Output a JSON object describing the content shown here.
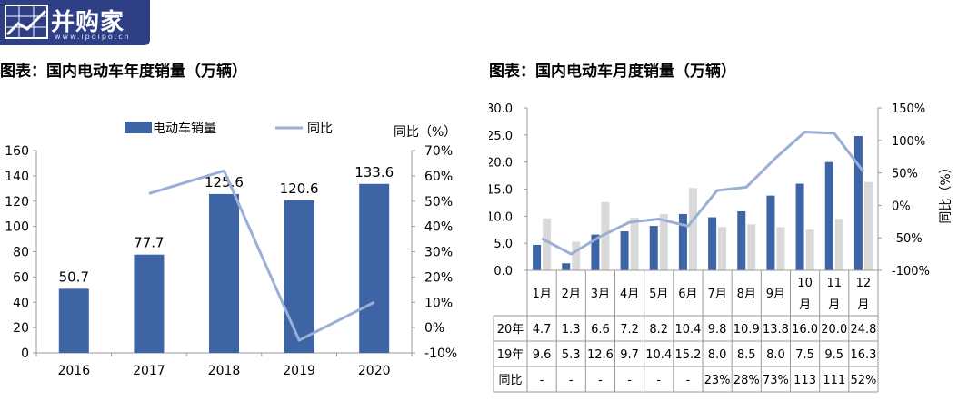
{
  "logo": {
    "brand": "并购家",
    "url": "www.ipoipo.cn"
  },
  "charts": {
    "annual": {
      "title": "图表：国内电动车年度销量（万辆）"
    },
    "monthly": {
      "title": "图表：国内电动车月度销量（万辆）"
    }
  },
  "chart_data": [
    {
      "type": "bar",
      "title": "图表：国内电动车年度销量（万辆）",
      "categories": [
        "2016",
        "2017",
        "2018",
        "2019",
        "2020"
      ],
      "series": [
        {
          "name": "电动车销量",
          "type": "bar",
          "axis": "left",
          "values": [
            50.7,
            77.7,
            125.6,
            120.6,
            133.6
          ],
          "labels": [
            "50.7",
            "77.7",
            "125.6",
            "120.6",
            "133.6"
          ]
        },
        {
          "name": "同比",
          "type": "line",
          "axis": "right",
          "values": [
            null,
            53,
            62,
            -5,
            10
          ]
        }
      ],
      "yticks": [
        "0",
        "20",
        "40",
        "60",
        "80",
        "100",
        "120",
        "140",
        "160"
      ],
      "y2ticks": [
        "-10%",
        "0%",
        "10%",
        "20%",
        "30%",
        "40%",
        "50%",
        "60%",
        "70%"
      ],
      "ylim": [
        0,
        160
      ],
      "y2lim": [
        -10,
        70
      ],
      "y2label": "同比（%）",
      "legend": "top",
      "colors": {
        "bar": "#3d64a5",
        "line": "#9aaed6"
      }
    },
    {
      "type": "bar",
      "title": "图表：国内电动车月度销量（万辆）",
      "categories": [
        "1月",
        "2月",
        "3月",
        "4月",
        "5月",
        "6月",
        "7月",
        "8月",
        "9月",
        "10月",
        "11月",
        "12月"
      ],
      "series": [
        {
          "name": "20年",
          "type": "bar",
          "axis": "left",
          "values": [
            4.7,
            1.3,
            6.6,
            7.2,
            8.2,
            10.4,
            9.8,
            10.9,
            13.8,
            16.0,
            20.0,
            24.8
          ]
        },
        {
          "name": "19年",
          "type": "bar",
          "axis": "left",
          "values": [
            9.6,
            5.3,
            12.6,
            9.7,
            10.4,
            15.2,
            8.0,
            8.5,
            8.0,
            7.5,
            9.5,
            16.3
          ]
        },
        {
          "name": "同比",
          "type": "line",
          "axis": "right",
          "values": [
            -51,
            -75,
            -48,
            -26,
            -21,
            -32,
            23,
            28,
            73,
            113,
            111,
            52
          ]
        }
      ],
      "table": {
        "rows": [
          {
            "label": "20年",
            "cells": [
              "4.7",
              "1.3",
              "6.6",
              "7.2",
              "8.2",
              "10.4",
              "9.8",
              "10.9",
              "13.8",
              "16.0",
              "20.0",
              "24.8"
            ]
          },
          {
            "label": "19年",
            "cells": [
              "9.6",
              "5.3",
              "12.6",
              "9.7",
              "10.4",
              "15.2",
              "8.0",
              "8.5",
              "8.0",
              "7.5",
              "9.5",
              "16.3"
            ]
          },
          {
            "label": "同比",
            "cells": [
              "-",
              "-",
              "-",
              "-",
              "-",
              "-",
              "23%",
              "28%",
              "73%",
              "113",
              "111",
              "52%"
            ]
          }
        ]
      },
      "yticks": [
        "0.0",
        "5.0",
        "10.0",
        "15.0",
        "20.0",
        "25.0",
        "30.0"
      ],
      "y2ticks": [
        "-100%",
        "-50%",
        "0%",
        "50%",
        "100%",
        "150%"
      ],
      "ylim": [
        0,
        30
      ],
      "y2lim": [
        -100,
        150
      ],
      "y2label": "同比（%）",
      "colors": {
        "bar20": "#3d64a5",
        "bar19": "#d9d9d9",
        "line": "#9aaed6"
      }
    }
  ]
}
